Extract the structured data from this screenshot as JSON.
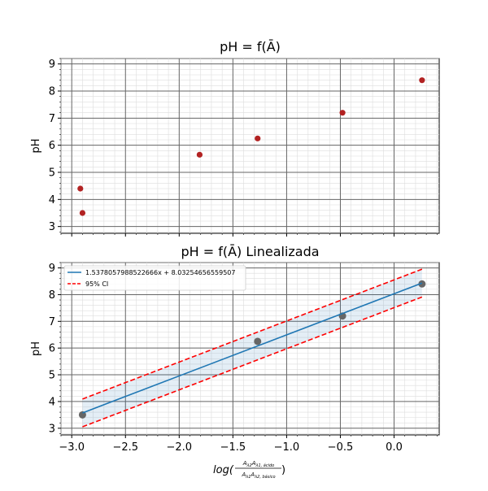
{
  "chart_data": [
    {
      "type": "scatter",
      "title": "pH = f(Ā)",
      "ylabel": "pH",
      "xlabel": "",
      "xlim": [
        -3.1,
        0.42
      ],
      "ylim": [
        2.75,
        9.2
      ],
      "xticks": [
        -3.0,
        -2.5,
        -2.0,
        -1.5,
        -1.0,
        -0.5,
        0.0
      ],
      "yticks": [
        3,
        4,
        5,
        6,
        7,
        8,
        9
      ],
      "grid": true,
      "point_color": "#b22222",
      "series": [
        {
          "x": [
            -2.92,
            -2.9,
            -1.81,
            -1.27,
            -0.48,
            0.26
          ],
          "y": [
            4.4,
            3.5,
            5.65,
            6.25,
            7.2,
            8.4
          ]
        }
      ]
    },
    {
      "type": "line",
      "title": "pH = f(Ā) Linealizada",
      "ylabel": "pH",
      "xlabel": "log(Aλ2Aλ1, ácido / Aλ1Aλ2, básico)",
      "xlim": [
        -3.1,
        0.42
      ],
      "ylim": [
        2.75,
        9.2
      ],
      "xticks": [
        -3.0,
        -2.5,
        -2.0,
        -1.5,
        -1.0,
        -0.5,
        0.0
      ],
      "xtick_labels": [
        "−3.0",
        "−2.5",
        "−2.0",
        "−1.5",
        "−1.0",
        "−0.5",
        "0.0"
      ],
      "yticks": [
        3,
        4,
        5,
        6,
        7,
        8,
        9
      ],
      "grid": true,
      "legend_position": "upper-left",
      "points": {
        "color": "#666666",
        "x": [
          -2.9,
          -1.27,
          -0.48,
          0.26
        ],
        "y": [
          3.5,
          6.25,
          7.2,
          8.4
        ]
      },
      "fit": {
        "name": "1.5378057988522666x + 8.03254656559507",
        "slope": 1.5378057988522666,
        "intercept": 8.03254656559507,
        "x_range": [
          -2.9,
          0.26
        ],
        "color": "#1f77b4"
      },
      "ci": {
        "name": "95% CI",
        "half_width": 0.52,
        "color": "#ff0000"
      }
    }
  ]
}
